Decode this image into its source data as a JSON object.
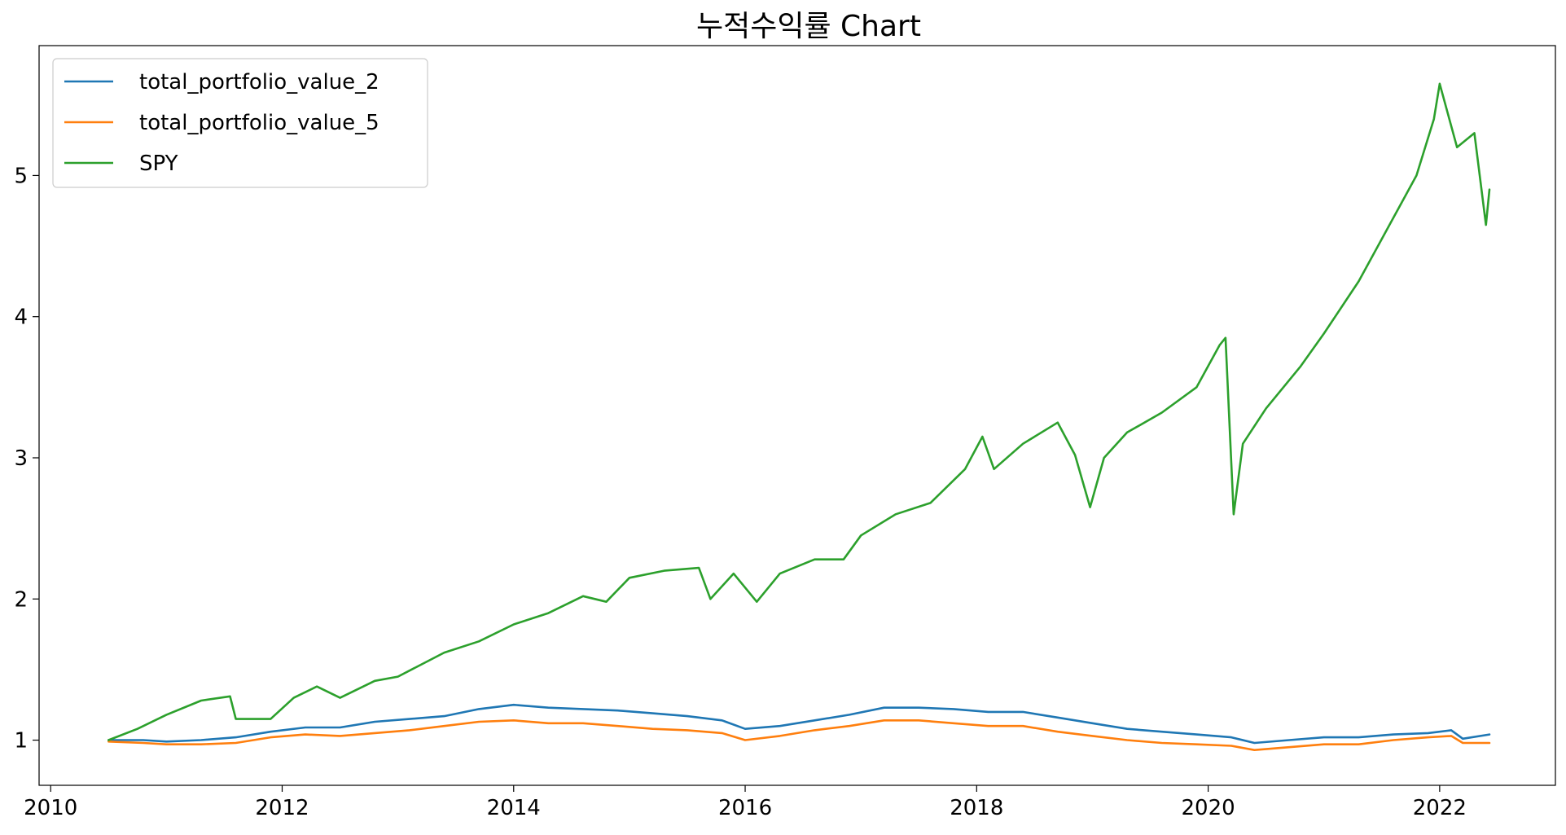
{
  "chart_data": {
    "type": "line",
    "title": "누적수익률 Chart",
    "xlabel": "",
    "ylabel": "",
    "xlim": [
      2009.9,
      2023.0
    ],
    "ylim": [
      0.68,
      5.92
    ],
    "x_ticks": [
      2010,
      2012,
      2014,
      2016,
      2018,
      2020,
      2022
    ],
    "x_tick_labels": [
      "2010",
      "2012",
      "2014",
      "2016",
      "2018",
      "2020",
      "2022"
    ],
    "y_ticks": [
      1,
      2,
      3,
      4,
      5
    ],
    "y_tick_labels": [
      "1",
      "2",
      "3",
      "4",
      "5"
    ],
    "grid": false,
    "legend_position": "top-left",
    "series": [
      {
        "name": "total_portfolio_value_2",
        "color": "#1f77b4",
        "points": [
          [
            2010.5,
            1.0
          ],
          [
            2010.8,
            1.0
          ],
          [
            2011.0,
            0.99
          ],
          [
            2011.3,
            1.0
          ],
          [
            2011.6,
            1.02
          ],
          [
            2011.9,
            1.06
          ],
          [
            2012.2,
            1.09
          ],
          [
            2012.5,
            1.09
          ],
          [
            2012.8,
            1.13
          ],
          [
            2013.1,
            1.15
          ],
          [
            2013.4,
            1.17
          ],
          [
            2013.7,
            1.22
          ],
          [
            2014.0,
            1.25
          ],
          [
            2014.3,
            1.23
          ],
          [
            2014.6,
            1.22
          ],
          [
            2014.9,
            1.21
          ],
          [
            2015.2,
            1.19
          ],
          [
            2015.5,
            1.17
          ],
          [
            2015.8,
            1.14
          ],
          [
            2016.0,
            1.08
          ],
          [
            2016.3,
            1.1
          ],
          [
            2016.6,
            1.14
          ],
          [
            2016.9,
            1.18
          ],
          [
            2017.2,
            1.23
          ],
          [
            2017.5,
            1.23
          ],
          [
            2017.8,
            1.22
          ],
          [
            2018.1,
            1.2
          ],
          [
            2018.4,
            1.2
          ],
          [
            2018.7,
            1.16
          ],
          [
            2019.0,
            1.12
          ],
          [
            2019.3,
            1.08
          ],
          [
            2019.6,
            1.06
          ],
          [
            2019.9,
            1.04
          ],
          [
            2020.2,
            1.02
          ],
          [
            2020.4,
            0.98
          ],
          [
            2020.7,
            1.0
          ],
          [
            2021.0,
            1.02
          ],
          [
            2021.3,
            1.02
          ],
          [
            2021.6,
            1.04
          ],
          [
            2021.9,
            1.05
          ],
          [
            2022.1,
            1.07
          ],
          [
            2022.2,
            1.01
          ],
          [
            2022.43,
            1.04
          ]
        ]
      },
      {
        "name": "total_portfolio_value_5",
        "color": "#ff7f0e",
        "points": [
          [
            2010.5,
            0.99
          ],
          [
            2010.8,
            0.98
          ],
          [
            2011.0,
            0.97
          ],
          [
            2011.3,
            0.97
          ],
          [
            2011.6,
            0.98
          ],
          [
            2011.9,
            1.02
          ],
          [
            2012.2,
            1.04
          ],
          [
            2012.5,
            1.03
          ],
          [
            2012.8,
            1.05
          ],
          [
            2013.1,
            1.07
          ],
          [
            2013.4,
            1.1
          ],
          [
            2013.7,
            1.13
          ],
          [
            2014.0,
            1.14
          ],
          [
            2014.3,
            1.12
          ],
          [
            2014.6,
            1.12
          ],
          [
            2014.9,
            1.1
          ],
          [
            2015.2,
            1.08
          ],
          [
            2015.5,
            1.07
          ],
          [
            2015.8,
            1.05
          ],
          [
            2016.0,
            1.0
          ],
          [
            2016.3,
            1.03
          ],
          [
            2016.6,
            1.07
          ],
          [
            2016.9,
            1.1
          ],
          [
            2017.2,
            1.14
          ],
          [
            2017.5,
            1.14
          ],
          [
            2017.8,
            1.12
          ],
          [
            2018.1,
            1.1
          ],
          [
            2018.4,
            1.1
          ],
          [
            2018.7,
            1.06
          ],
          [
            2019.0,
            1.03
          ],
          [
            2019.3,
            1.0
          ],
          [
            2019.6,
            0.98
          ],
          [
            2019.9,
            0.97
          ],
          [
            2020.2,
            0.96
          ],
          [
            2020.4,
            0.93
          ],
          [
            2020.7,
            0.95
          ],
          [
            2021.0,
            0.97
          ],
          [
            2021.3,
            0.97
          ],
          [
            2021.6,
            1.0
          ],
          [
            2021.9,
            1.02
          ],
          [
            2022.1,
            1.03
          ],
          [
            2022.2,
            0.98
          ],
          [
            2022.43,
            0.98
          ]
        ]
      },
      {
        "name": "SPY",
        "color": "#2ca02c",
        "points": [
          [
            2010.5,
            1.0
          ],
          [
            2010.75,
            1.08
          ],
          [
            2011.0,
            1.18
          ],
          [
            2011.3,
            1.28
          ],
          [
            2011.55,
            1.31
          ],
          [
            2011.6,
            1.15
          ],
          [
            2011.9,
            1.15
          ],
          [
            2012.1,
            1.3
          ],
          [
            2012.3,
            1.38
          ],
          [
            2012.5,
            1.3
          ],
          [
            2012.8,
            1.42
          ],
          [
            2013.0,
            1.45
          ],
          [
            2013.4,
            1.62
          ],
          [
            2013.7,
            1.7
          ],
          [
            2014.0,
            1.82
          ],
          [
            2014.3,
            1.9
          ],
          [
            2014.6,
            2.02
          ],
          [
            2014.8,
            1.98
          ],
          [
            2015.0,
            2.15
          ],
          [
            2015.3,
            2.2
          ],
          [
            2015.6,
            2.22
          ],
          [
            2015.7,
            2.0
          ],
          [
            2015.9,
            2.18
          ],
          [
            2016.1,
            1.98
          ],
          [
            2016.3,
            2.18
          ],
          [
            2016.6,
            2.28
          ],
          [
            2016.85,
            2.28
          ],
          [
            2017.0,
            2.45
          ],
          [
            2017.3,
            2.6
          ],
          [
            2017.6,
            2.68
          ],
          [
            2017.9,
            2.92
          ],
          [
            2018.05,
            3.15
          ],
          [
            2018.15,
            2.92
          ],
          [
            2018.4,
            3.1
          ],
          [
            2018.7,
            3.25
          ],
          [
            2018.85,
            3.02
          ],
          [
            2018.98,
            2.65
          ],
          [
            2019.1,
            3.0
          ],
          [
            2019.3,
            3.18
          ],
          [
            2019.6,
            3.32
          ],
          [
            2019.9,
            3.5
          ],
          [
            2020.1,
            3.8
          ],
          [
            2020.15,
            3.85
          ],
          [
            2020.22,
            2.6
          ],
          [
            2020.3,
            3.1
          ],
          [
            2020.5,
            3.35
          ],
          [
            2020.8,
            3.65
          ],
          [
            2021.0,
            3.88
          ],
          [
            2021.3,
            4.25
          ],
          [
            2021.6,
            4.7
          ],
          [
            2021.8,
            5.0
          ],
          [
            2021.95,
            5.4
          ],
          [
            2022.0,
            5.65
          ],
          [
            2022.15,
            5.2
          ],
          [
            2022.3,
            5.3
          ],
          [
            2022.4,
            4.65
          ],
          [
            2022.43,
            4.9
          ]
        ]
      }
    ]
  }
}
